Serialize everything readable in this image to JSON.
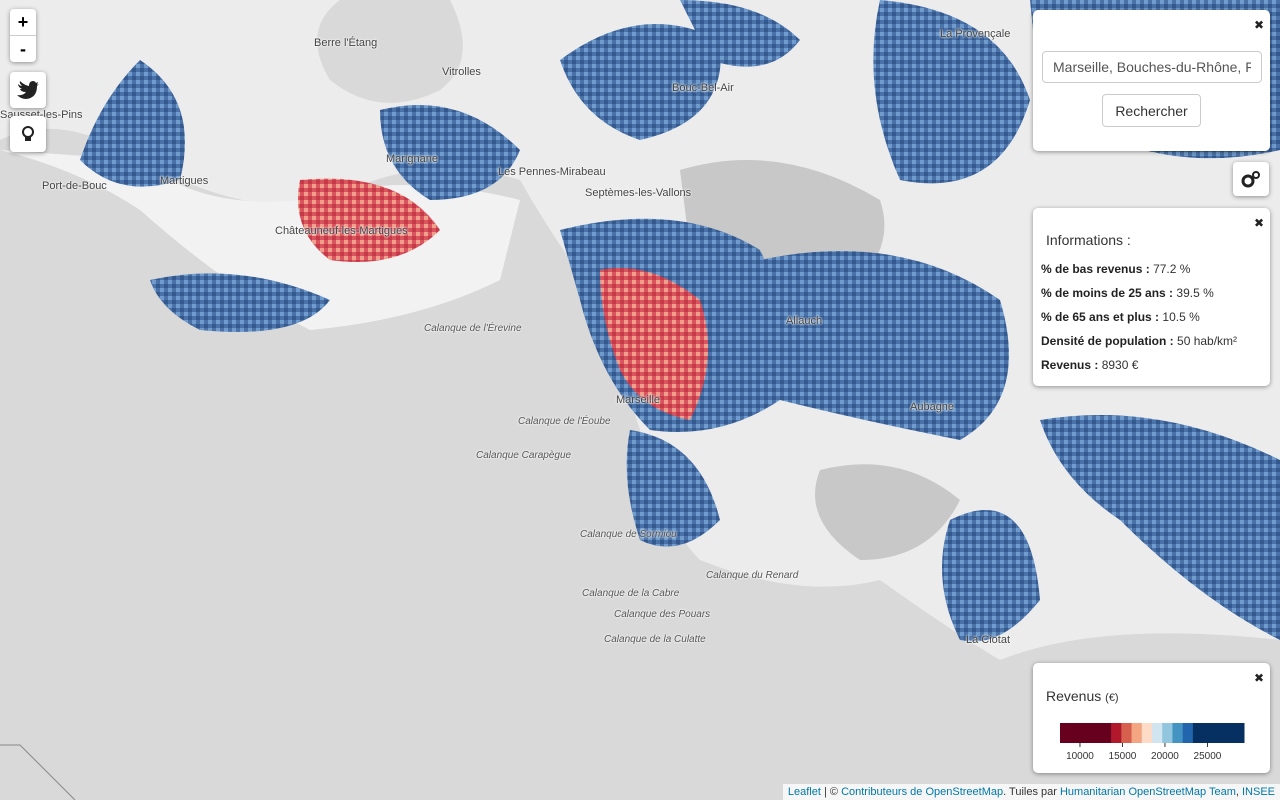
{
  "zoom": {
    "zoom_in": "+",
    "zoom_out": "-"
  },
  "search": {
    "input_value": "Marseille, Bouches-du-Rhône, France",
    "button": "Rechercher",
    "close": "✖"
  },
  "info": {
    "title": "Informations :",
    "close": "✖",
    "rows": [
      {
        "label": "% de bas revenus :",
        "value": "77.2 %"
      },
      {
        "label": "% de moins de 25 ans :",
        "value": "39.5 %"
      },
      {
        "label": "% de 65 ans et plus :",
        "value": "10.5 %"
      },
      {
        "label": "Densité de population :",
        "value": "50 hab/km²"
      },
      {
        "label": "Revenus :",
        "value": "8930 €"
      }
    ]
  },
  "legend": {
    "title": "Revenus",
    "unit": "(€)",
    "close": "✖",
    "ticks": [
      10000,
      15000,
      20000,
      25000
    ],
    "range": [
      7650,
      29300
    ],
    "colors": [
      "#67001f",
      "#67001f",
      "#67001f",
      "#67001f",
      "#67001f",
      "#b2182b",
      "#d6604d",
      "#f4a582",
      "#fddbc7",
      "#d1e5f0",
      "#92c5de",
      "#4393c3",
      "#2166ac",
      "#053061",
      "#053061",
      "#053061",
      "#053061",
      "#053061"
    ]
  },
  "attribution": {
    "leaflet": "Leaflet",
    "sep1": " | © ",
    "osm": "Contributeurs de OpenStreetMap",
    "tiles": ". Tuiles par ",
    "hot": "Humanitarian OpenStreetMap Team",
    "sep2": ", ",
    "insee": "INSEE"
  },
  "map_labels": [
    "Berre l'Étang",
    "Vitrolles",
    "Marignane",
    "Port-de-Bouc",
    "Martigues",
    "Châteauneuf-les-Martigues",
    "Les Pennes-Mirabeau",
    "Septèmes-les-Vallons",
    "Bouc-Bel-Air",
    "Marseille",
    "Allauch",
    "Aubagne",
    "La Ciotat",
    "Calanque de l'Érevine",
    "Calanque de l'Éoube",
    "Calanque Carapègue",
    "Calanque de Sormiou",
    "Calanque de la Cabre",
    "Calanque des Pouars",
    "Calanque de la Culatte",
    "Calanque du Renard",
    "La Provençale",
    "Sausset-les-Pins"
  ]
}
